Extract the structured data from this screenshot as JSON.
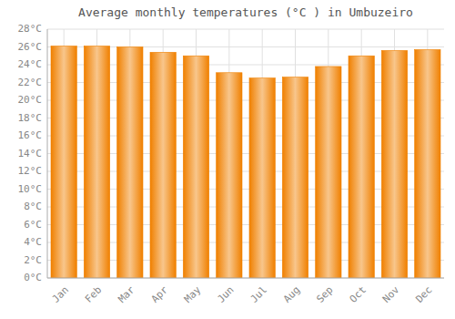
{
  "chart_data": {
    "type": "bar",
    "title": "Average monthly temperatures (°C ) in Umbuzeiro",
    "categories": [
      "Jan",
      "Feb",
      "Mar",
      "Apr",
      "May",
      "Jun",
      "Jul",
      "Aug",
      "Sep",
      "Oct",
      "Nov",
      "Dec"
    ],
    "values": [
      26.1,
      26.1,
      26.0,
      25.4,
      25.0,
      23.1,
      22.5,
      22.6,
      23.8,
      25.0,
      25.6,
      25.7
    ],
    "color": "#F08000",
    "ylim": [
      0,
      28
    ],
    "yticks": [
      {
        "value": 0,
        "label": "0°C"
      },
      {
        "value": 2,
        "label": "2°C"
      },
      {
        "value": 4,
        "label": "4°C"
      },
      {
        "value": 6,
        "label": "6°C"
      },
      {
        "value": 8,
        "label": "8°C"
      },
      {
        "value": 10,
        "label": "10°C"
      },
      {
        "value": 12,
        "label": "12°C"
      },
      {
        "value": 14,
        "label": "14°C"
      },
      {
        "value": 16,
        "label": "16°C"
      },
      {
        "value": 18,
        "label": "18°C"
      },
      {
        "value": 20,
        "label": "20°C"
      },
      {
        "value": 22,
        "label": "22°C"
      },
      {
        "value": 24,
        "label": "24°C"
      },
      {
        "value": 26,
        "label": "26°C"
      },
      {
        "value": 28,
        "label": "28°C"
      }
    ],
    "grid": true
  }
}
